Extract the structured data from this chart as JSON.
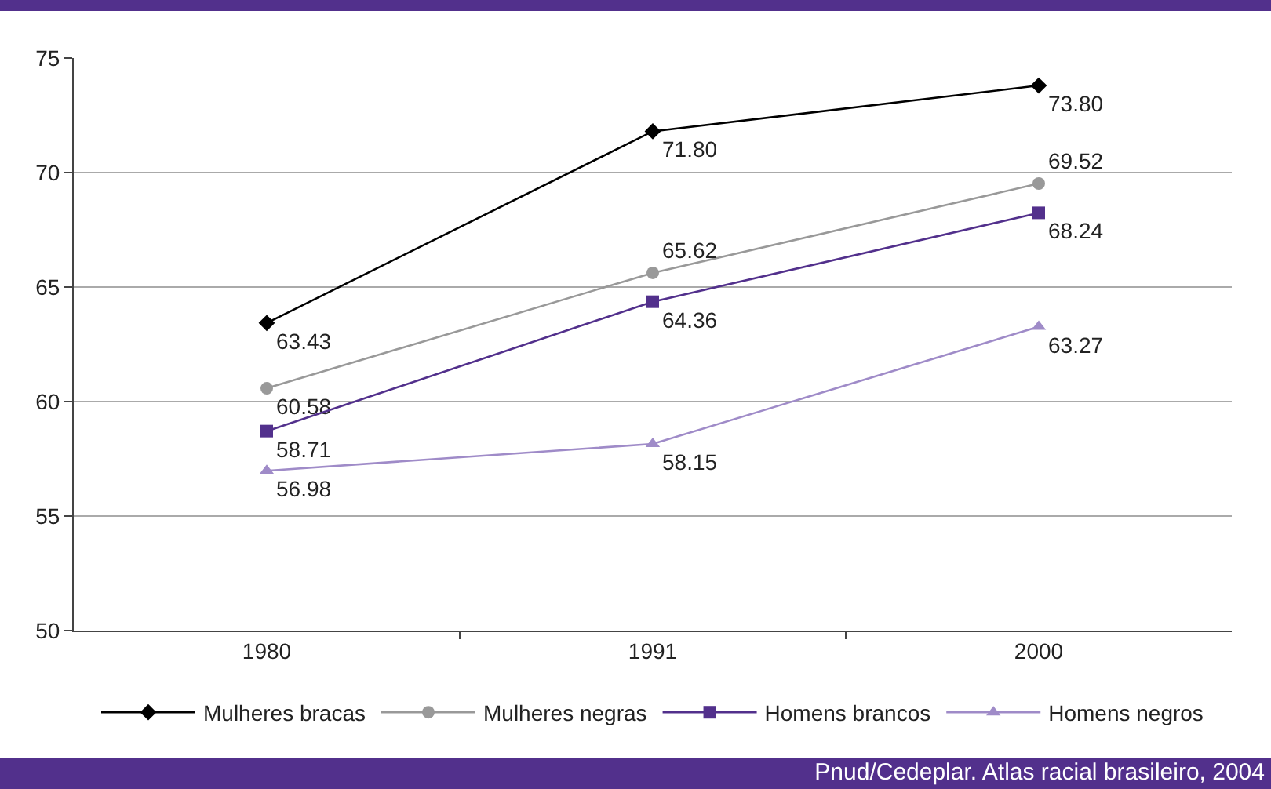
{
  "chart_data": {
    "type": "line",
    "categories": [
      "1980",
      "1991",
      "2000"
    ],
    "series": [
      {
        "name": "Mulheres bracas",
        "color": "#000000",
        "marker": "diamond",
        "values": [
          63.43,
          71.8,
          73.8
        ],
        "value_labels": [
          "63.43",
          "71.80",
          "73.80"
        ]
      },
      {
        "name": "Mulheres negras",
        "color": "#999999",
        "marker": "circle",
        "values": [
          60.58,
          65.62,
          69.52
        ],
        "value_labels": [
          "60.58",
          "65.62",
          "69.52"
        ]
      },
      {
        "name": "Homens brancos",
        "color": "#52308c",
        "marker": "square",
        "values": [
          58.71,
          64.36,
          68.24
        ],
        "value_labels": [
          "58.71",
          "64.36",
          "68.24"
        ]
      },
      {
        "name": "Homens negros",
        "color": "#9f8bc8",
        "marker": "triangle",
        "values": [
          56.98,
          58.15,
          63.27
        ],
        "value_labels": [
          "56.98",
          "58.15",
          "63.27"
        ]
      }
    ],
    "ylim": [
      50,
      75
    ],
    "yticks": [
      50,
      55,
      60,
      65,
      70,
      75
    ],
    "grid": "y",
    "legend": "bottom",
    "line_style": "solid",
    "annotations": [
      "Pnud/Cedeplar. Atlas racial brasileiro, 2004"
    ]
  }
}
